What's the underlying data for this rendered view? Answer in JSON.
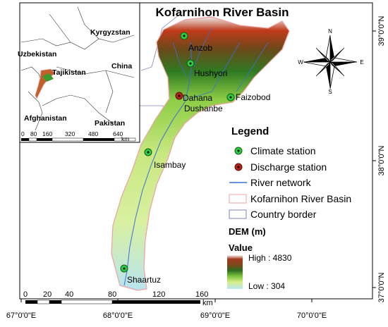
{
  "title": "Kofarnihon River Basin",
  "axis_labels": {
    "bottom": [
      "67°0'0\"E",
      "68°0'0\"E",
      "69°0'0\"E",
      "70°0'0\"E"
    ],
    "right": [
      "39°0'0\"N",
      "38°0'0\"N",
      "37°0'0\"N"
    ]
  },
  "inset": {
    "countries": [
      "Kyrgyzstan",
      "Uzbekistan",
      "Tajikistan",
      "China",
      "Afghanistan",
      "Pakistan"
    ],
    "scale_ticks": [
      "0",
      "80",
      "160",
      "320",
      "480",
      "640"
    ],
    "scale_unit": "km"
  },
  "stations": {
    "climate": [
      "Anzob",
      "Hushyori",
      "Faizobod",
      "Isambay",
      "Shaartuz"
    ],
    "discharge": [
      "Dahana"
    ],
    "other_labels": [
      "Dushanbe"
    ]
  },
  "legend": {
    "heading": "Legend",
    "items": [
      "Climate station",
      "Discharge station",
      "River network",
      "Kofarnihon River Basin",
      "Country border"
    ],
    "dem_title": "DEM (m)",
    "value_title": "Value",
    "high_label": "High : 4830",
    "low_label": "Low : 304",
    "dem_max": 4830,
    "dem_min": 304
  },
  "compass": {
    "n": "N",
    "s": "S",
    "e": "E",
    "w": "W"
  },
  "scale": {
    "ticks": [
      "0",
      "20",
      "40",
      "80",
      "120",
      "160"
    ],
    "unit": "km"
  },
  "colors": {
    "climate_station": "#2ecc40",
    "discharge_station": "#b5221a",
    "river": "#3a6fd8",
    "basin_outline": "#f0a0a0",
    "country_border": "#8080c0"
  }
}
